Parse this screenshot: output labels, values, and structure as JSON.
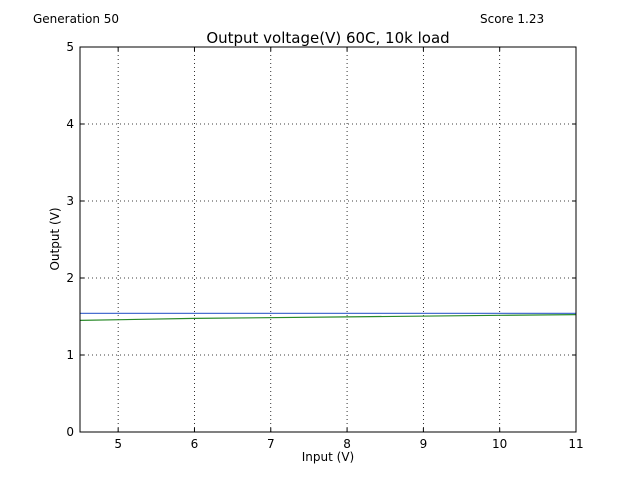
{
  "header": {
    "generation_label": "Generation 50",
    "score_label": "Score 1.23"
  },
  "chart_data": {
    "type": "line",
    "title": "Output voltage(V) 60C, 10k load",
    "xlabel": "Input (V)",
    "ylabel": "Output (V)",
    "xlim": [
      4.5,
      11
    ],
    "ylim": [
      0,
      5
    ],
    "xticks": [
      5,
      6,
      7,
      8,
      9,
      10,
      11
    ],
    "yticks": [
      0,
      1,
      2,
      3,
      4,
      5
    ],
    "grid": true,
    "series": [
      {
        "color": "#4a6fd0",
        "x": [
          4.5,
          11
        ],
        "y": [
          1.54,
          1.54
        ]
      },
      {
        "color": "#2a8a2a",
        "x": [
          4.5,
          6,
          8,
          10,
          11
        ],
        "y": [
          1.45,
          1.475,
          1.495,
          1.515,
          1.525
        ]
      }
    ]
  }
}
